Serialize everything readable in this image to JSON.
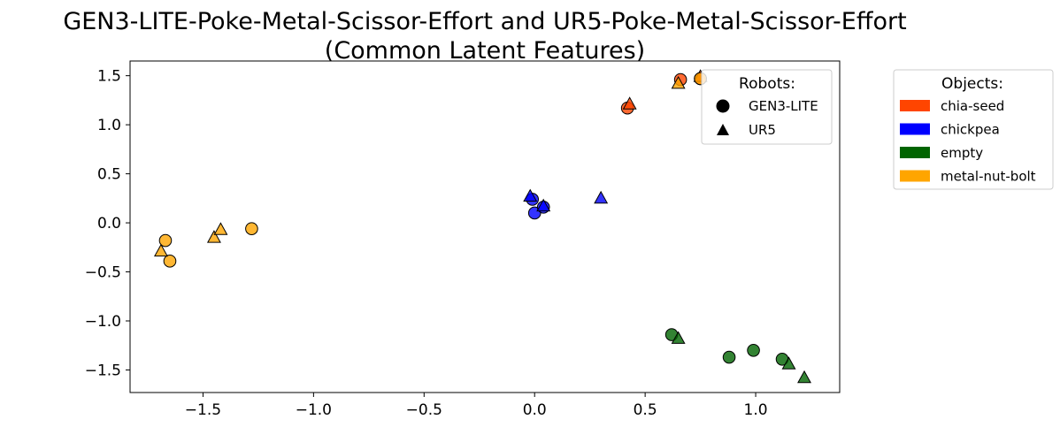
{
  "chart_data": {
    "type": "scatter",
    "title": "GEN3-LITE-Poke-Metal-Scissor-Effort and UR5-Poke-Metal-Scissor-Effort",
    "subtitle": "(Common Latent Features)",
    "xlabel": "",
    "ylabel": "",
    "xlim": [
      -1.83,
      1.38
    ],
    "ylim": [
      -1.73,
      1.65
    ],
    "xticks": [
      -1.5,
      -1.0,
      -0.5,
      0.0,
      0.5,
      1.0
    ],
    "yticks": [
      -1.5,
      -1.0,
      -0.5,
      0.0,
      0.5,
      1.0,
      1.5
    ],
    "xtick_labels": [
      "−1.5",
      "−1.0",
      "−0.5",
      "0.0",
      "0.5",
      "1.0"
    ],
    "ytick_labels": [
      "−1.5",
      "−1.0",
      "−0.5",
      "0.0",
      "0.5",
      "1.0",
      "1.5"
    ],
    "grid": false,
    "robot_legend": {
      "title": "Robots:",
      "placement": "upper-right-inside",
      "entries": [
        {
          "label": "GEN3-LITE",
          "marker": "circle"
        },
        {
          "label": "UR5",
          "marker": "triangle"
        }
      ]
    },
    "object_legend": {
      "title": "Objects:",
      "placement": "outside-right",
      "entries": [
        {
          "label": "chia-seed",
          "color": "#FF4500"
        },
        {
          "label": "chickpea",
          "color": "#0000FF"
        },
        {
          "label": "empty",
          "color": "#006400"
        },
        {
          "label": "metal-nut-bolt",
          "color": "#FFA500"
        }
      ]
    },
    "series": [
      {
        "object": "chia-seed",
        "robot": "GEN3-LITE",
        "marker": "circle",
        "color": "#FF4500",
        "points": [
          [
            0.42,
            1.17
          ],
          [
            0.66,
            1.46
          ],
          [
            0.75,
            1.47
          ]
        ]
      },
      {
        "object": "chia-seed",
        "robot": "UR5",
        "marker": "triangle",
        "color": "#FF4500",
        "points": [
          [
            0.43,
            1.21
          ],
          [
            0.75,
            1.49
          ]
        ]
      },
      {
        "object": "chickpea",
        "robot": "GEN3-LITE",
        "marker": "circle",
        "color": "#0000FF",
        "points": [
          [
            -0.01,
            0.24
          ],
          [
            0.0,
            0.1
          ],
          [
            0.04,
            0.16
          ]
        ]
      },
      {
        "object": "chickpea",
        "robot": "UR5",
        "marker": "triangle",
        "color": "#0000FF",
        "points": [
          [
            -0.02,
            0.27
          ],
          [
            0.04,
            0.17
          ],
          [
            0.3,
            0.25
          ]
        ]
      },
      {
        "object": "empty",
        "robot": "GEN3-LITE",
        "marker": "circle",
        "color": "#006400",
        "points": [
          [
            0.62,
            -1.14
          ],
          [
            0.88,
            -1.37
          ],
          [
            0.99,
            -1.3
          ],
          [
            1.12,
            -1.39
          ]
        ]
      },
      {
        "object": "empty",
        "robot": "UR5",
        "marker": "triangle",
        "color": "#006400",
        "points": [
          [
            0.65,
            -1.18
          ],
          [
            1.15,
            -1.44
          ],
          [
            1.22,
            -1.58
          ]
        ]
      },
      {
        "object": "metal-nut-bolt",
        "robot": "GEN3-LITE",
        "marker": "circle",
        "color": "#FFA500",
        "points": [
          [
            -1.67,
            -0.18
          ],
          [
            -1.65,
            -0.39
          ],
          [
            -1.28,
            -0.06
          ],
          [
            0.75,
            1.47
          ]
        ]
      },
      {
        "object": "metal-nut-bolt",
        "robot": "UR5",
        "marker": "triangle",
        "color": "#FFA500",
        "points": [
          [
            -1.69,
            -0.29
          ],
          [
            -1.45,
            -0.15
          ],
          [
            -1.42,
            -0.07
          ],
          [
            0.65,
            1.42
          ]
        ]
      }
    ]
  }
}
